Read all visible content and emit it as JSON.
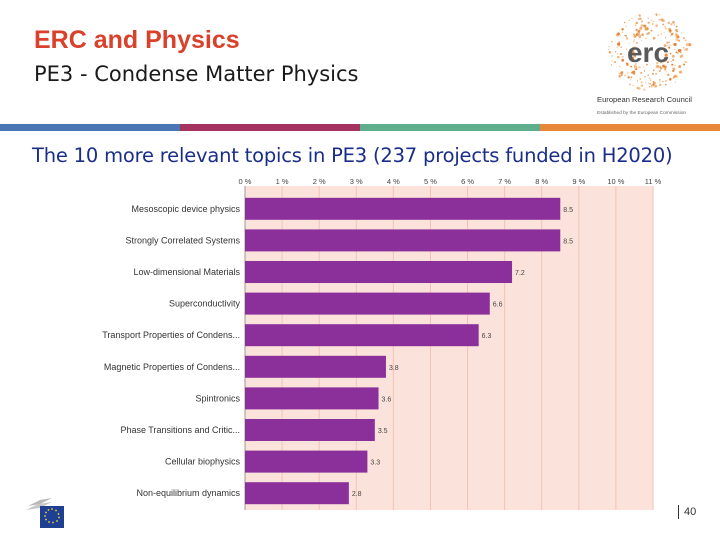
{
  "header": {
    "title": "ERC and Physics",
    "subtitle": "PE3 - Condense Matter Physics"
  },
  "logo": {
    "wordmark": "erc",
    "org_name": "European Research Council",
    "tagline": "Established by the European Commission"
  },
  "stripe_colors": [
    "#4a77b4",
    "#a4345f",
    "#5fae8e",
    "#e6873a"
  ],
  "headline": "The 10 more relevant topics in PE3 (237 projects funded in H2020)",
  "chart_data": {
    "type": "bar",
    "orientation": "horizontal",
    "categories": [
      "Mesoscopic device physics",
      "Strongly Correlated Systems",
      "Low-dimensional Materials",
      "Superconductivity",
      "Transport Properties of Condens...",
      "Magnetic Properties of Condens...",
      "Spintronics",
      "Phase Transitions and Critic...",
      "Cellular biophysics",
      "Non-equilibrium dynamics"
    ],
    "values": [
      8.5,
      8.5,
      7.2,
      6.6,
      6.3,
      3.8,
      3.6,
      3.5,
      3.3,
      2.8
    ],
    "value_labels": [
      "8.5",
      "8.5",
      "7.2",
      "6.6",
      "6.3",
      "3.8",
      "3.6",
      "3.5",
      "3.3",
      "2.8"
    ],
    "xticks": [
      0,
      1,
      2,
      3,
      4,
      5,
      6,
      7,
      8,
      9,
      10,
      11
    ],
    "xtick_labels": [
      "0 %",
      "1 %",
      "2 %",
      "3 %",
      "4 %",
      "5 %",
      "6 %",
      "7 %",
      "8 %",
      "9 %",
      "10 %",
      "11 %"
    ],
    "xlim": [
      0,
      11
    ],
    "bar_color": "#8b2f9b",
    "plot_bg": "#fbe3dc",
    "grid": true
  },
  "footer": {
    "page_number": "40"
  }
}
